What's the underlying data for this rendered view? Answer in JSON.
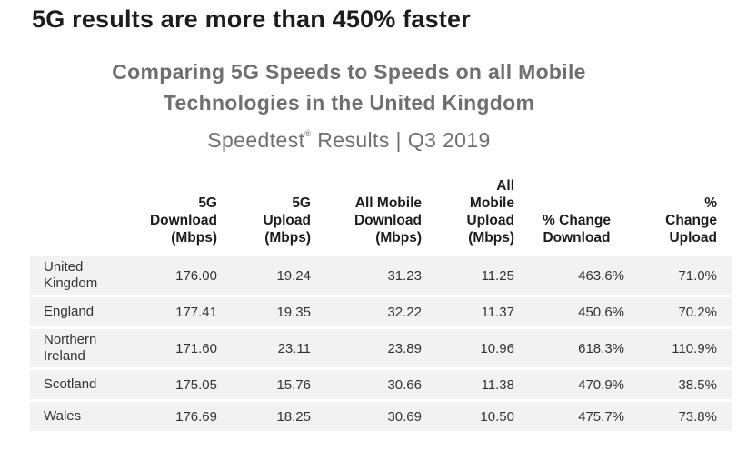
{
  "headline": "5G results are more than 450% faster",
  "chart_data": {
    "type": "table",
    "title": "Comparing 5G Speeds to Speeds on all Mobile Technologies in the United Kingdom",
    "title_line1": "Comparing 5G Speeds to Speeds on all Mobile",
    "title_line2": "Technologies in the United Kingdom",
    "subtitle_brand": "Speedtest",
    "subtitle_mark": "®",
    "subtitle_rest": " Results | Q3 2019",
    "columns": [
      "",
      "5G\nDownload\n(Mbps)",
      "5G\nUpload\n(Mbps)",
      "All Mobile\nDownload\n(Mbps)",
      "All\nMobile\nUpload\n(Mbps)",
      "% Change\nDownload",
      "%\nChange\nUpload"
    ],
    "rows": [
      {
        "region": "United\nKingdom",
        "values": [
          "176.00",
          "19.24",
          "31.23",
          "11.25",
          "463.6%",
          "71.0%"
        ]
      },
      {
        "region": "England",
        "values": [
          "177.41",
          "19.35",
          "32.22",
          "11.37",
          "450.6%",
          "70.2%"
        ]
      },
      {
        "region": "Northern\nIreland",
        "values": [
          "171.60",
          "23.11",
          "23.89",
          "10.96",
          "618.3%",
          "110.9%"
        ]
      },
      {
        "region": "Scotland",
        "values": [
          "175.05",
          "15.76",
          "30.66",
          "11.38",
          "470.9%",
          "38.5%"
        ]
      },
      {
        "region": "Wales",
        "values": [
          "176.69",
          "18.25",
          "30.69",
          "10.50",
          "475.7%",
          "73.8%"
        ]
      }
    ]
  }
}
